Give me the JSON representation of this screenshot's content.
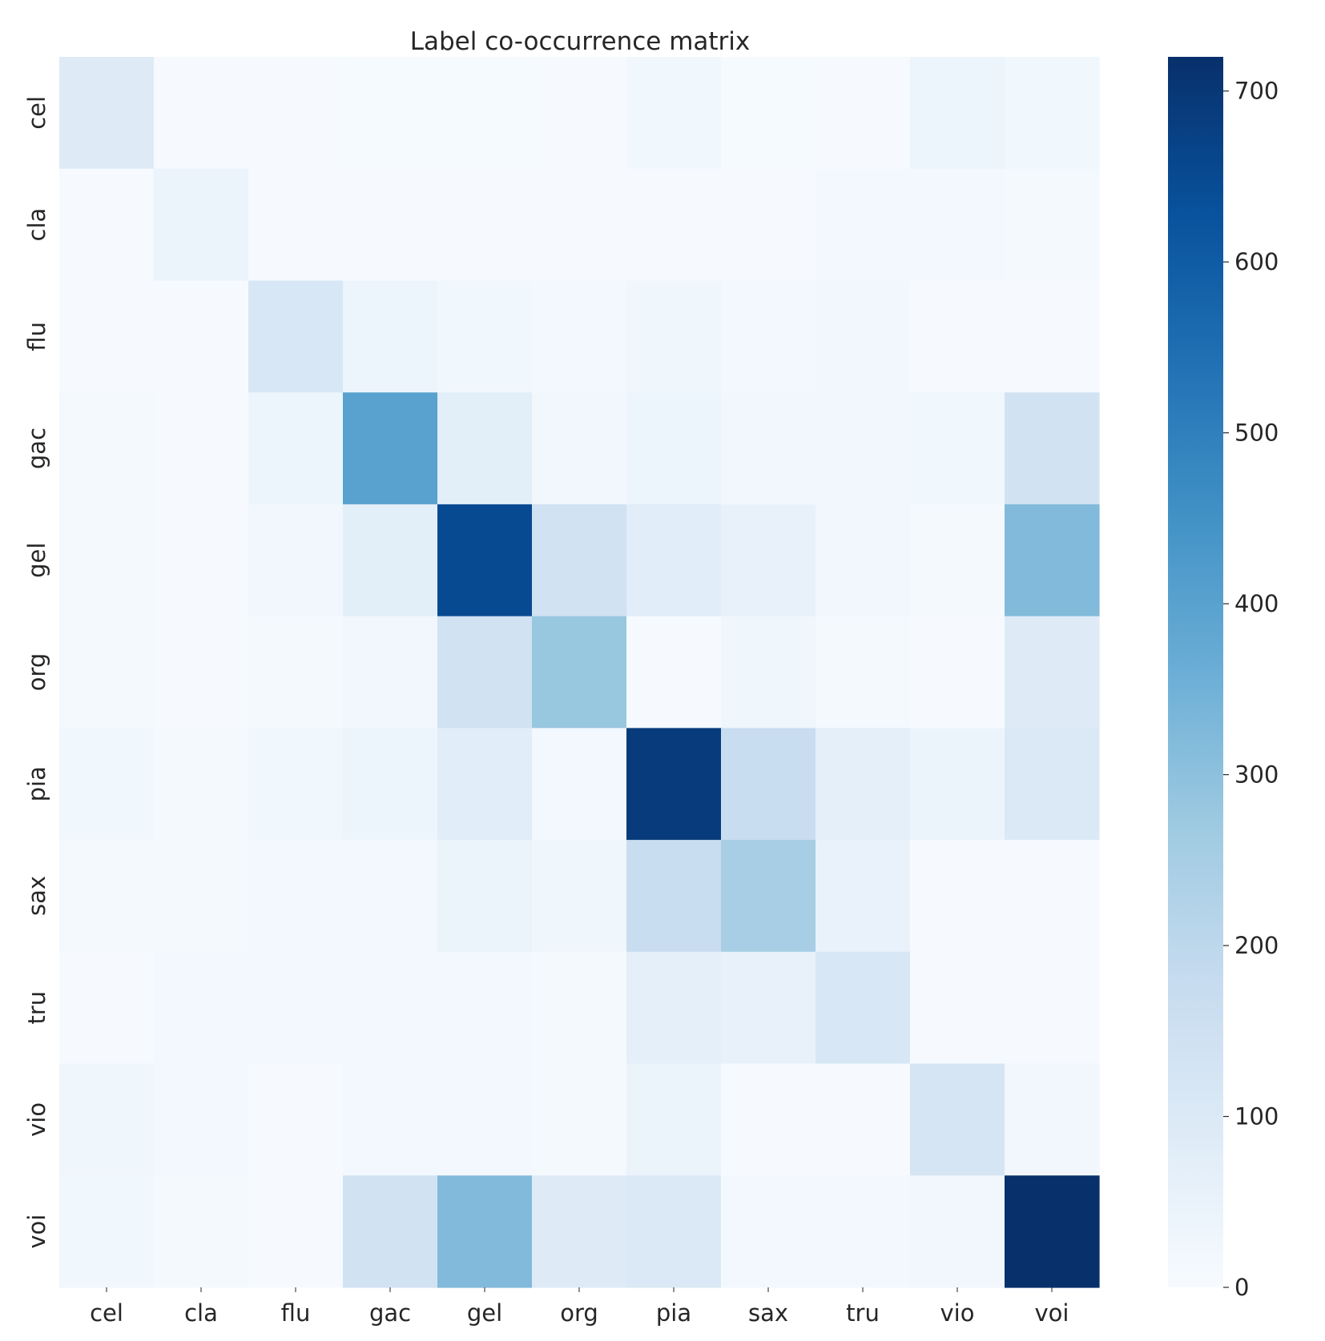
{
  "chart_data": {
    "type": "heatmap",
    "title": "Label co-occurrence matrix",
    "xlabel": "",
    "ylabel": "",
    "x_labels": [
      "cel",
      "cla",
      "flu",
      "gac",
      "gel",
      "org",
      "pia",
      "sax",
      "tru",
      "vio",
      "voi"
    ],
    "y_labels": [
      "cel",
      "cla",
      "flu",
      "gac",
      "gel",
      "org",
      "pia",
      "sax",
      "tru",
      "vio",
      "voi"
    ],
    "matrix": [
      [
        90,
        5,
        5,
        8,
        8,
        5,
        25,
        8,
        5,
        35,
        25
      ],
      [
        5,
        45,
        5,
        5,
        5,
        5,
        5,
        5,
        15,
        15,
        10
      ],
      [
        5,
        5,
        115,
        35,
        25,
        15,
        30,
        15,
        20,
        5,
        5
      ],
      [
        10,
        5,
        35,
        400,
        75,
        20,
        35,
        20,
        20,
        25,
        140
      ],
      [
        10,
        5,
        20,
        75,
        650,
        140,
        80,
        55,
        20,
        10,
        320
      ],
      [
        10,
        5,
        10,
        20,
        140,
        280,
        5,
        30,
        10,
        5,
        90
      ],
      [
        25,
        10,
        25,
        35,
        80,
        15,
        690,
        170,
        70,
        40,
        100
      ],
      [
        10,
        10,
        15,
        15,
        45,
        30,
        170,
        250,
        50,
        5,
        5
      ],
      [
        5,
        15,
        15,
        15,
        15,
        10,
        70,
        55,
        115,
        5,
        5
      ],
      [
        30,
        15,
        5,
        15,
        15,
        10,
        45,
        5,
        5,
        125,
        20
      ],
      [
        25,
        10,
        5,
        140,
        320,
        90,
        100,
        15,
        15,
        20,
        720
      ]
    ],
    "vmin": 0,
    "vmax": 720,
    "colormap": "Blues",
    "colorbar": {
      "ticks": [
        0,
        100,
        200,
        300,
        400,
        500,
        600,
        700
      ]
    },
    "grid": false
  },
  "colors": {
    "text": "#262626",
    "background": "#ffffff"
  }
}
